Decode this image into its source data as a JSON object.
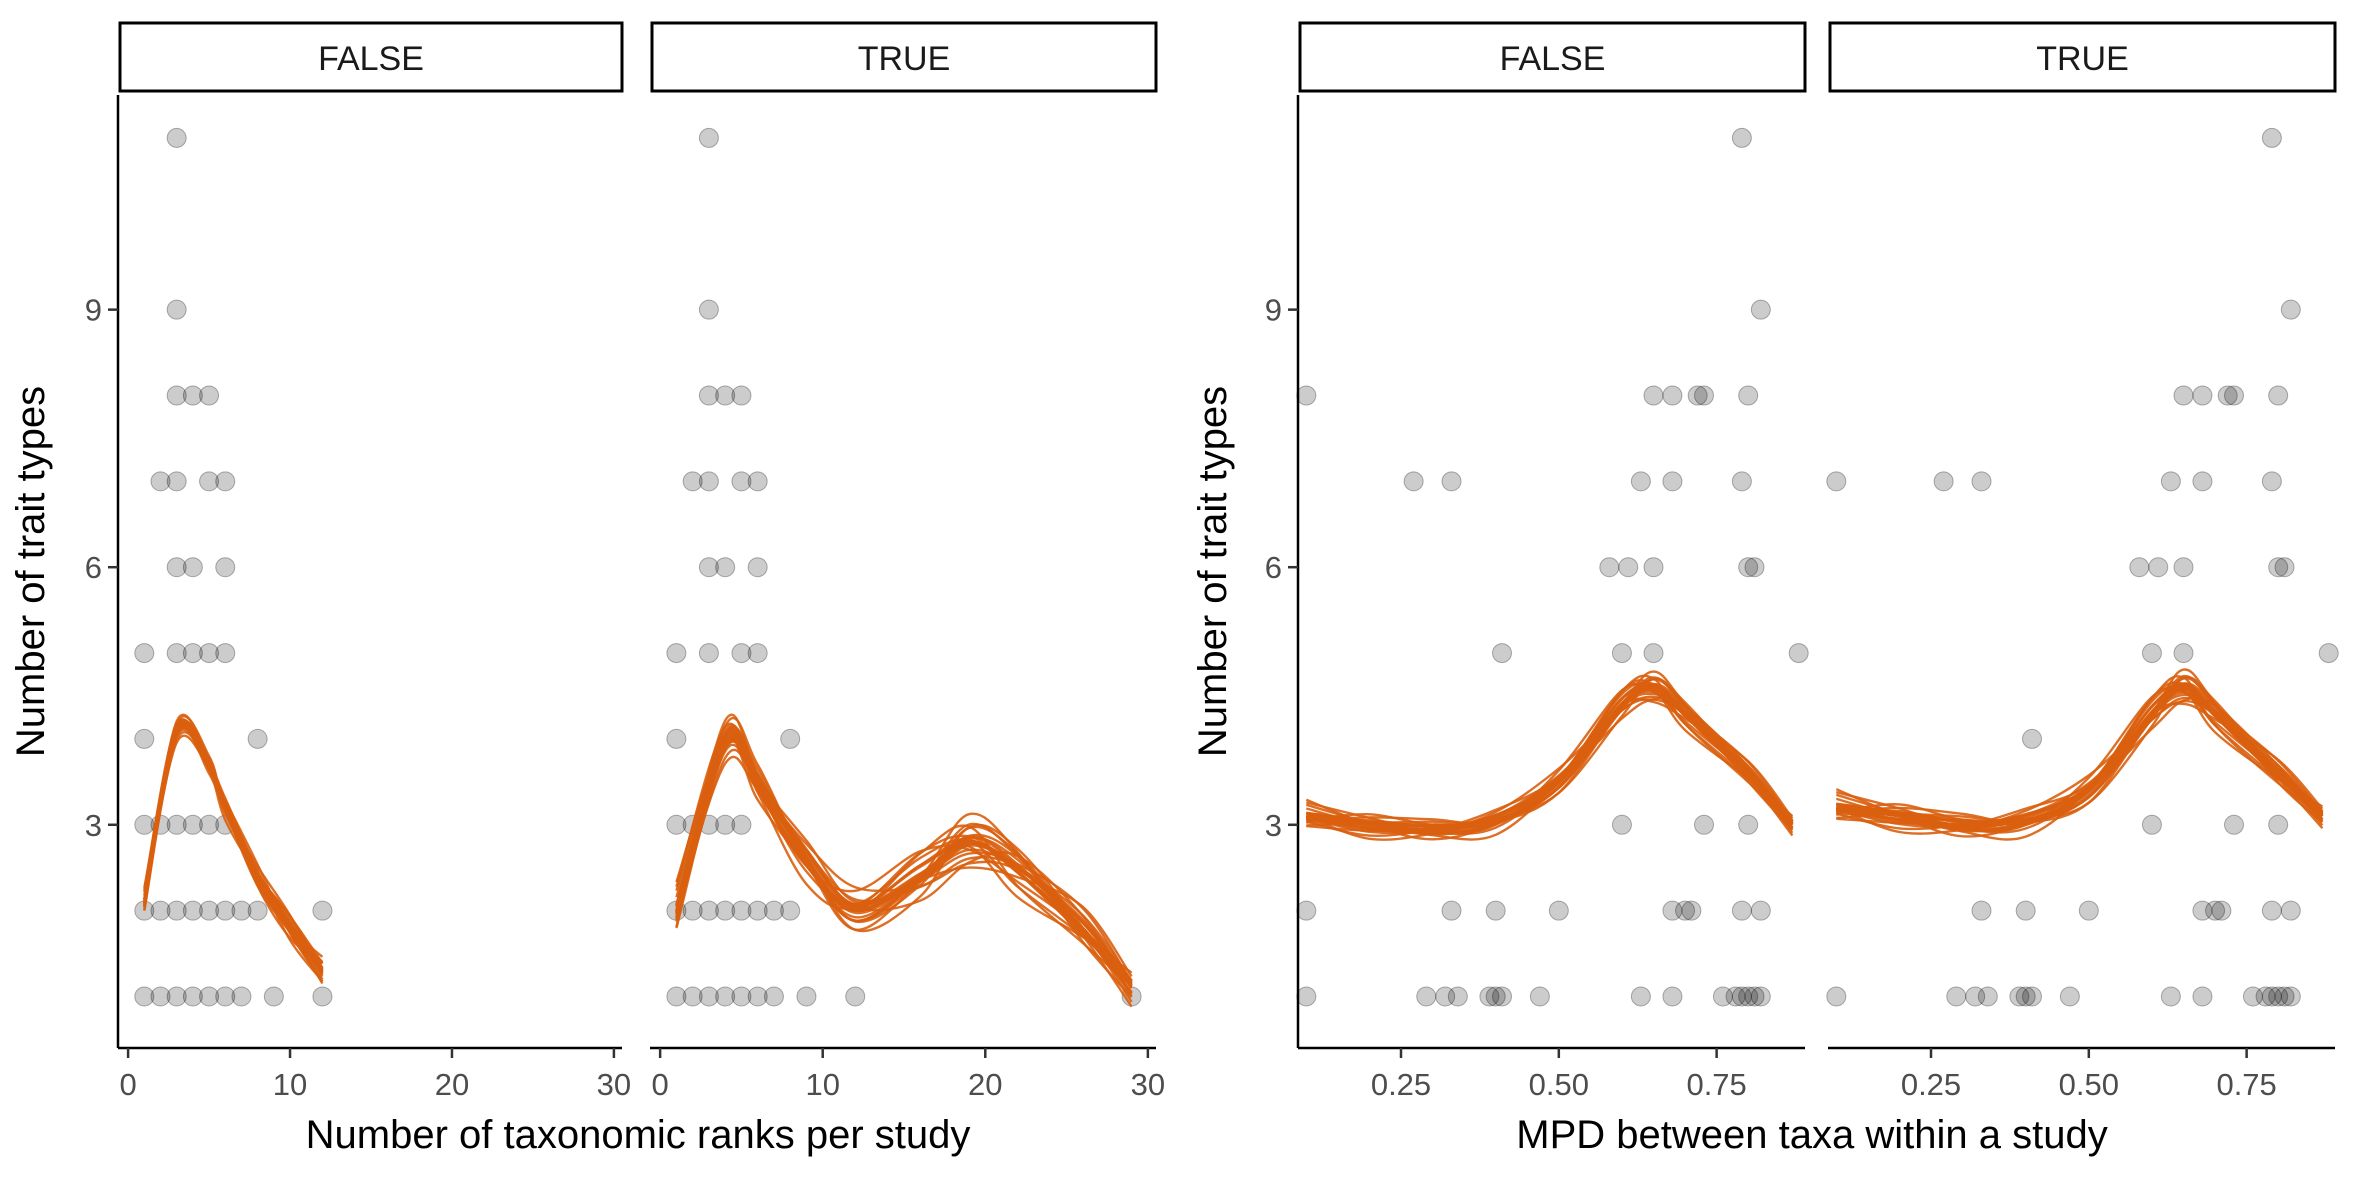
{
  "chart_data": [
    {
      "type": "scatter",
      "xlabel": "Number of taxonomic ranks per study",
      "ylabel": "Number of trait types",
      "xlim": [
        -0.5,
        30.5
      ],
      "ylim": [
        0.4,
        11.5
      ],
      "xticks": [
        0,
        10,
        20,
        30
      ],
      "xtick_labels": [
        "0",
        "10",
        "20",
        "30"
      ],
      "yticks": [
        3,
        6,
        9
      ],
      "ytick_labels": [
        "3",
        "6",
        "9"
      ],
      "grid": false,
      "point_color": "#000000",
      "curve_color": "#D95F0E",
      "facets": [
        {
          "label": "FALSE",
          "points": [
            [
              1,
              1
            ],
            [
              2,
              1
            ],
            [
              3,
              1
            ],
            [
              4,
              1
            ],
            [
              5,
              1
            ],
            [
              6,
              1
            ],
            [
              7,
              1
            ],
            [
              9,
              1
            ],
            [
              12,
              1
            ],
            [
              1,
              2
            ],
            [
              2,
              2
            ],
            [
              3,
              2
            ],
            [
              4,
              2
            ],
            [
              5,
              2
            ],
            [
              6,
              2
            ],
            [
              7,
              2
            ],
            [
              8,
              2
            ],
            [
              12,
              2
            ],
            [
              1,
              3
            ],
            [
              2,
              3
            ],
            [
              3,
              3
            ],
            [
              4,
              3
            ],
            [
              5,
              3
            ],
            [
              6,
              3
            ],
            [
              1,
              4
            ],
            [
              8,
              4
            ],
            [
              1,
              5
            ],
            [
              3,
              5
            ],
            [
              4,
              5
            ],
            [
              5,
              5
            ],
            [
              6,
              5
            ],
            [
              3,
              6
            ],
            [
              4,
              6
            ],
            [
              6,
              6
            ],
            [
              2,
              7
            ],
            [
              3,
              7
            ],
            [
              5,
              7
            ],
            [
              6,
              7
            ],
            [
              3,
              8
            ],
            [
              4,
              8
            ],
            [
              5,
              8
            ],
            [
              3,
              9
            ],
            [
              3,
              11
            ]
          ],
          "fit_x": [
            1,
            3,
            5,
            6,
            8,
            10,
            12
          ],
          "fit_y": [
            2.1,
            4.1,
            3.7,
            3.2,
            2.4,
            1.8,
            1.3
          ],
          "fit_spread": 0.35
        },
        {
          "label": "TRUE",
          "points": [
            [
              1,
              1
            ],
            [
              2,
              1
            ],
            [
              3,
              1
            ],
            [
              4,
              1
            ],
            [
              5,
              1
            ],
            [
              6,
              1
            ],
            [
              7,
              1
            ],
            [
              9,
              1
            ],
            [
              12,
              1
            ],
            [
              29,
              1
            ],
            [
              1,
              2
            ],
            [
              2,
              2
            ],
            [
              3,
              2
            ],
            [
              4,
              2
            ],
            [
              5,
              2
            ],
            [
              6,
              2
            ],
            [
              7,
              2
            ],
            [
              8,
              2
            ],
            [
              1,
              3
            ],
            [
              2,
              3
            ],
            [
              3,
              3
            ],
            [
              4,
              3
            ],
            [
              5,
              3
            ],
            [
              1,
              4
            ],
            [
              8,
              4
            ],
            [
              1,
              5
            ],
            [
              3,
              5
            ],
            [
              5,
              5
            ],
            [
              6,
              5
            ],
            [
              3,
              6
            ],
            [
              4,
              6
            ],
            [
              6,
              6
            ],
            [
              2,
              7
            ],
            [
              3,
              7
            ],
            [
              5,
              7
            ],
            [
              6,
              7
            ],
            [
              3,
              8
            ],
            [
              4,
              8
            ],
            [
              5,
              8
            ],
            [
              3,
              9
            ],
            [
              3,
              11
            ]
          ],
          "fit_x": [
            1,
            4,
            6,
            9,
            12,
            16,
            19,
            22,
            26,
            29
          ],
          "fit_y": [
            2.0,
            4.0,
            3.5,
            2.6,
            2.0,
            2.4,
            2.8,
            2.5,
            1.8,
            1.1
          ],
          "fit_spread": 0.7
        }
      ]
    },
    {
      "type": "scatter",
      "xlabel": "MPD between taxa within a study",
      "ylabel": "Number of trait types",
      "xlim": [
        0.09,
        0.89
      ],
      "ylim": [
        0.4,
        11.5
      ],
      "xticks": [
        0.25,
        0.5,
        0.75
      ],
      "xtick_labels": [
        "0.25",
        "0.50",
        "0.75"
      ],
      "yticks": [
        3,
        6,
        9
      ],
      "ytick_labels": [
        "3",
        "6",
        "9"
      ],
      "grid": false,
      "point_color": "#000000",
      "curve_color": "#D95F0E",
      "facets": [
        {
          "label": "FALSE",
          "points": [
            [
              0.1,
              1
            ],
            [
              0.29,
              1
            ],
            [
              0.32,
              1
            ],
            [
              0.34,
              1
            ],
            [
              0.39,
              1
            ],
            [
              0.4,
              1
            ],
            [
              0.41,
              1
            ],
            [
              0.47,
              1
            ],
            [
              0.63,
              1
            ],
            [
              0.68,
              1
            ],
            [
              0.76,
              1
            ],
            [
              0.78,
              1
            ],
            [
              0.79,
              1
            ],
            [
              0.8,
              1
            ],
            [
              0.81,
              1
            ],
            [
              0.82,
              1
            ],
            [
              0.1,
              2
            ],
            [
              0.33,
              2
            ],
            [
              0.4,
              2
            ],
            [
              0.5,
              2
            ],
            [
              0.68,
              2
            ],
            [
              0.7,
              2
            ],
            [
              0.71,
              2
            ],
            [
              0.79,
              2
            ],
            [
              0.82,
              2
            ],
            [
              0.6,
              3
            ],
            [
              0.73,
              3
            ],
            [
              0.8,
              3
            ],
            [
              0.41,
              5
            ],
            [
              0.6,
              5
            ],
            [
              0.65,
              5
            ],
            [
              0.88,
              5
            ],
            [
              0.58,
              6
            ],
            [
              0.61,
              6
            ],
            [
              0.65,
              6
            ],
            [
              0.8,
              6
            ],
            [
              0.81,
              6
            ],
            [
              0.27,
              7
            ],
            [
              0.33,
              7
            ],
            [
              0.63,
              7
            ],
            [
              0.68,
              7
            ],
            [
              0.79,
              7
            ],
            [
              0.1,
              8
            ],
            [
              0.65,
              8
            ],
            [
              0.68,
              8
            ],
            [
              0.72,
              8
            ],
            [
              0.73,
              8
            ],
            [
              0.8,
              8
            ],
            [
              0.82,
              9
            ],
            [
              0.79,
              11
            ]
          ],
          "fit_x": [
            0.1,
            0.2,
            0.3,
            0.4,
            0.5,
            0.6,
            0.65,
            0.7,
            0.8,
            0.87
          ],
          "fit_y": [
            3.1,
            3.0,
            2.95,
            3.05,
            3.5,
            4.4,
            4.6,
            4.3,
            3.6,
            3.0
          ],
          "fit_spread": 0.4
        },
        {
          "label": "TRUE",
          "points": [
            [
              0.1,
              1
            ],
            [
              0.29,
              1
            ],
            [
              0.32,
              1
            ],
            [
              0.34,
              1
            ],
            [
              0.39,
              1
            ],
            [
              0.4,
              1
            ],
            [
              0.41,
              1
            ],
            [
              0.47,
              1
            ],
            [
              0.63,
              1
            ],
            [
              0.68,
              1
            ],
            [
              0.76,
              1
            ],
            [
              0.78,
              1
            ],
            [
              0.79,
              1
            ],
            [
              0.8,
              1
            ],
            [
              0.81,
              1
            ],
            [
              0.82,
              1
            ],
            [
              0.33,
              2
            ],
            [
              0.4,
              2
            ],
            [
              0.5,
              2
            ],
            [
              0.68,
              2
            ],
            [
              0.7,
              2
            ],
            [
              0.71,
              2
            ],
            [
              0.79,
              2
            ],
            [
              0.82,
              2
            ],
            [
              0.6,
              3
            ],
            [
              0.73,
              3
            ],
            [
              0.8,
              3
            ],
            [
              0.41,
              4
            ],
            [
              0.6,
              5
            ],
            [
              0.65,
              5
            ],
            [
              0.88,
              5
            ],
            [
              0.58,
              6
            ],
            [
              0.61,
              6
            ],
            [
              0.65,
              6
            ],
            [
              0.8,
              6
            ],
            [
              0.81,
              6
            ],
            [
              0.1,
              7
            ],
            [
              0.27,
              7
            ],
            [
              0.33,
              7
            ],
            [
              0.63,
              7
            ],
            [
              0.68,
              7
            ],
            [
              0.79,
              7
            ],
            [
              0.65,
              8
            ],
            [
              0.68,
              8
            ],
            [
              0.72,
              8
            ],
            [
              0.73,
              8
            ],
            [
              0.8,
              8
            ],
            [
              0.82,
              9
            ],
            [
              0.79,
              11
            ]
          ],
          "fit_x": [
            0.1,
            0.2,
            0.3,
            0.4,
            0.5,
            0.6,
            0.65,
            0.7,
            0.8,
            0.87
          ],
          "fit_y": [
            3.2,
            3.1,
            3.0,
            3.05,
            3.4,
            4.3,
            4.6,
            4.3,
            3.6,
            3.1
          ],
          "fit_spread": 0.45
        }
      ]
    }
  ]
}
